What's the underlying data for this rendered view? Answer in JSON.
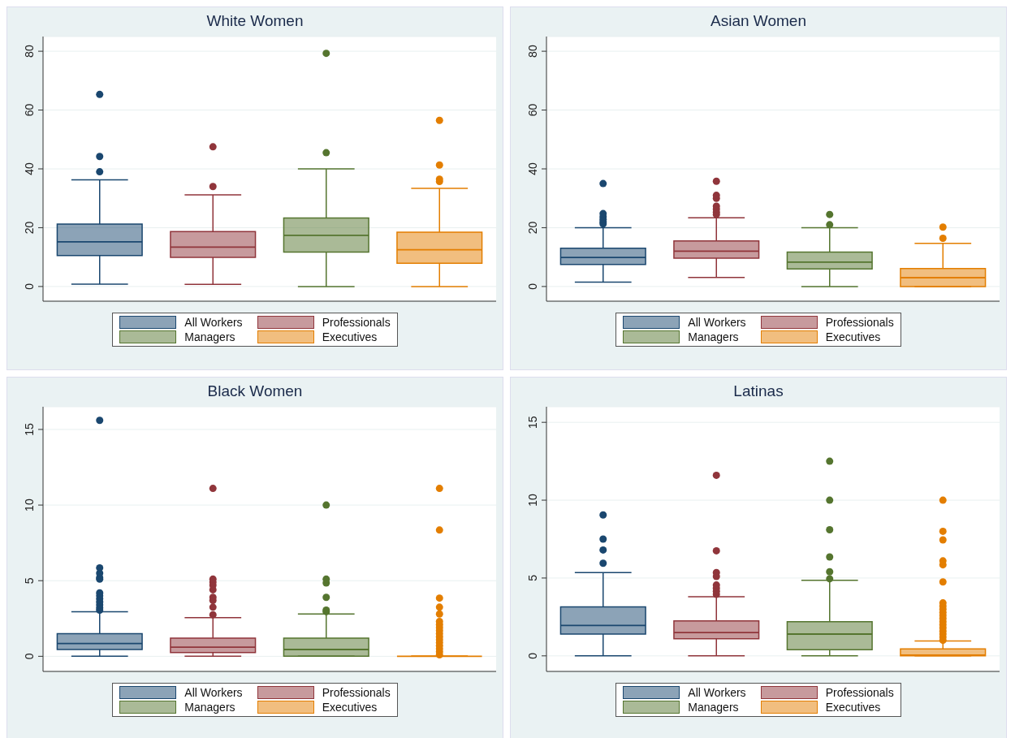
{
  "chart_data": [
    {
      "type": "box",
      "title": "White Women",
      "categories": [
        null
      ],
      "ylim": [
        -5,
        85
      ],
      "yticks": [
        0,
        20,
        40,
        60,
        80
      ],
      "grid": "y",
      "legend": "bottom",
      "tick_labels": "y",
      "series": [
        {
          "name": "All Workers",
          "color": "#1a476f",
          "boxes": [
            {
              "low": 0.8,
              "q1": 10.5,
              "median": 15.2,
              "q3": 21.2,
              "high": 36.3,
              "outliers": [
                39,
                44.2,
                65.3
              ]
            }
          ]
        },
        {
          "name": "Professionals",
          "color": "#90353b",
          "boxes": [
            {
              "low": 0.7,
              "q1": 9.9,
              "median": 13.4,
              "q3": 18.7,
              "high": 31.2,
              "outliers": [
                34,
                47.5
              ]
            }
          ]
        },
        {
          "name": "Managers",
          "color": "#55752f",
          "boxes": [
            {
              "low": 0,
              "q1": 11.7,
              "median": 17.4,
              "q3": 23.3,
              "high": 40,
              "outliers": [
                45.5,
                79.3
              ]
            }
          ]
        },
        {
          "name": "Executives",
          "color": "#e37e00",
          "boxes": [
            {
              "low": 0,
              "q1": 7.9,
              "median": 12.5,
              "q3": 18.5,
              "high": 33.4,
              "outliers": [
                35.7,
                36.5,
                41.3,
                56.5
              ]
            }
          ]
        }
      ]
    },
    {
      "type": "box",
      "title": "Asian Women",
      "categories": [
        null
      ],
      "ylim": [
        -5,
        85
      ],
      "yticks": [
        0,
        20,
        40,
        60,
        80
      ],
      "grid": "y",
      "legend": "bottom",
      "tick_labels": "y",
      "series": [
        {
          "name": "All Workers",
          "color": "#1a476f",
          "boxes": [
            {
              "low": 1.5,
              "q1": 7.5,
              "median": 9.9,
              "q3": 13,
              "high": 20,
              "outliers": [
                21.3,
                22,
                22.8,
                23.7,
                24.8,
                35
              ]
            }
          ]
        },
        {
          "name": "Professionals",
          "color": "#90353b",
          "boxes": [
            {
              "low": 3.1,
              "q1": 9.6,
              "median": 12,
              "q3": 15.5,
              "high": 23.4,
              "outliers": [
                24.5,
                25.3,
                26.3,
                27.3,
                30,
                31,
                35.8
              ]
            }
          ]
        },
        {
          "name": "Managers",
          "color": "#55752f",
          "boxes": [
            {
              "low": 0,
              "q1": 6,
              "median": 8.3,
              "q3": 11.7,
              "high": 20,
              "outliers": [
                21,
                24.5
              ]
            }
          ]
        },
        {
          "name": "Executives",
          "color": "#e37e00",
          "boxes": [
            {
              "low": 0,
              "q1": 0,
              "median": 3,
              "q3": 6.1,
              "high": 14.7,
              "outliers": [
                16.4,
                20.2
              ]
            }
          ]
        }
      ]
    },
    {
      "type": "box",
      "title": "Black Women",
      "categories": [
        null
      ],
      "ylim": [
        -1,
        16.5
      ],
      "yticks": [
        0,
        5,
        10,
        15
      ],
      "grid": "y",
      "legend": "bottom",
      "tick_labels": "y",
      "series": [
        {
          "name": "All Workers",
          "color": "#1a476f",
          "boxes": [
            {
              "low": 0,
              "q1": 0.45,
              "median": 0.85,
              "q3": 1.5,
              "high": 2.95,
              "outliers": [
                3.05,
                3.2,
                3.4,
                3.6,
                3.8,
                4,
                4.2,
                5.1,
                5.2,
                5.5,
                5.85,
                15.6
              ]
            }
          ]
        },
        {
          "name": "Professionals",
          "color": "#90353b",
          "boxes": [
            {
              "low": 0,
              "q1": 0.25,
              "median": 0.6,
              "q3": 1.2,
              "high": 2.55,
              "outliers": [
                2.75,
                3.25,
                3.7,
                3.9,
                4.4,
                4.7,
                4.9,
                5.1,
                11.1
              ]
            }
          ]
        },
        {
          "name": "Managers",
          "color": "#55752f",
          "boxes": [
            {
              "low": 0,
              "q1": 0,
              "median": 0.45,
              "q3": 1.2,
              "high": 2.8,
              "outliers": [
                2.95,
                3.05,
                3.9,
                4.85,
                5.1,
                10
              ]
            }
          ]
        },
        {
          "name": "Executives",
          "color": "#e37e00",
          "boxes": [
            {
              "low": 0,
              "q1": 0,
              "median": 0,
              "q3": 0,
              "high": 0,
              "outliers": [
                0.1,
                0.3,
                0.5,
                0.7,
                0.9,
                1.1,
                1.3,
                1.5,
                1.7,
                1.9,
                2.1,
                2.3,
                2.8,
                3.25,
                3.85,
                8.35,
                11.1
              ]
            }
          ]
        }
      ]
    },
    {
      "type": "box",
      "title": "Latinas",
      "categories": [
        null
      ],
      "ylim": [
        -1,
        16
      ],
      "yticks": [
        0,
        5,
        10,
        15
      ],
      "grid": "y",
      "legend": "bottom",
      "tick_labels": "y",
      "series": [
        {
          "name": "All Workers",
          "color": "#1a476f",
          "boxes": [
            {
              "low": 0,
              "q1": 1.4,
              "median": 1.95,
              "q3": 3.15,
              "high": 5.35,
              "outliers": [
                5.95,
                6.8,
                7.5,
                9.05
              ]
            }
          ]
        },
        {
          "name": "Professionals",
          "color": "#90353b",
          "boxes": [
            {
              "low": 0,
              "q1": 1.1,
              "median": 1.5,
              "q3": 2.25,
              "high": 3.8,
              "outliers": [
                3.95,
                4.15,
                4.35,
                4.55,
                5.1,
                5.35,
                6.75,
                11.6
              ]
            }
          ]
        },
        {
          "name": "Managers",
          "color": "#55752f",
          "boxes": [
            {
              "low": 0,
              "q1": 0.4,
              "median": 1.4,
              "q3": 2.2,
              "high": 4.85,
              "outliers": [
                4.95,
                5.4,
                6.35,
                8.1,
                10,
                12.5
              ]
            }
          ]
        },
        {
          "name": "Executives",
          "color": "#e37e00",
          "boxes": [
            {
              "low": 0,
              "q1": 0,
              "median": 0.05,
              "q3": 0.45,
              "high": 0.95,
              "outliers": [
                1,
                1.2,
                1.4,
                1.6,
                1.8,
                2,
                2.2,
                2.4,
                2.6,
                2.8,
                3,
                3.2,
                3.4,
                4.75,
                5.85,
                6.1,
                7.45,
                8,
                10
              ]
            }
          ]
        }
      ]
    }
  ]
}
